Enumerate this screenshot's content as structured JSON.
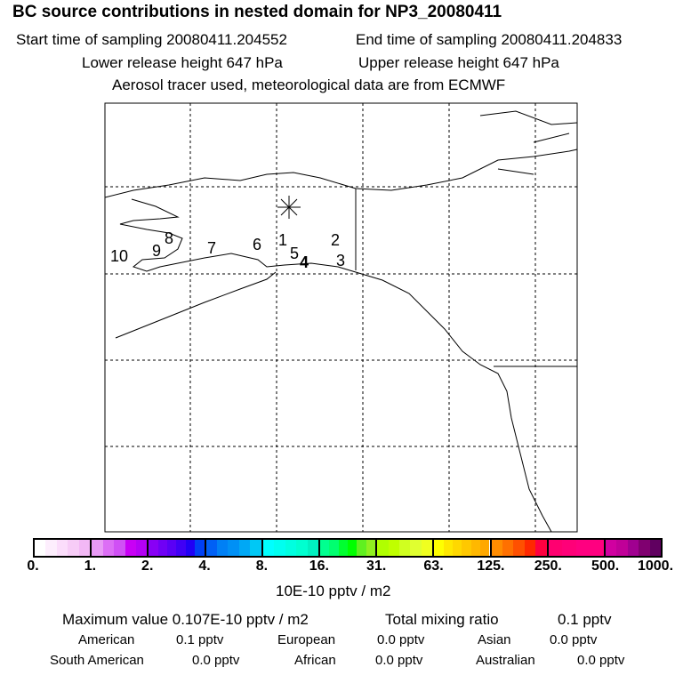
{
  "title": "BC  source contributions in nested domain for NP3_20080411",
  "start_label": "Start time of sampling 20080411.204552",
  "end_label": "End time of sampling 20080411.204833",
  "lower_label": "Lower release height  647 hPa",
  "upper_label": "Upper release height  647 hPa",
  "tracer_label": "Aerosol tracer used, meteorological data are from ECMWF",
  "source_labels": [
    "1",
    "2",
    "3",
    "4",
    "5",
    "6",
    "7",
    "8",
    "9",
    "10"
  ],
  "colorbar": {
    "ticks": [
      "0.",
      "1.",
      "2.",
      "4.",
      "8.",
      "16.",
      "31.",
      "63.",
      "125.",
      "250.",
      "500.",
      "1000."
    ],
    "unit": "10E-10 pptv / m2",
    "segments": [
      [
        "#ffffff",
        "#fdeefd",
        "#fbddfb",
        "#f7ccf7",
        "#f2b8f5"
      ],
      [
        "#e89af5",
        "#dc6ef5",
        "#d050f5",
        "#c800f5",
        "#b400f5"
      ],
      [
        "#8800f5",
        "#7000f5",
        "#5a00f5",
        "#4000f5",
        "#2000f5",
        "#0040f5"
      ],
      [
        "#0060f5",
        "#0080f5",
        "#0090f5",
        "#00a8f5",
        "#00c8f5"
      ],
      [
        "#00ffff",
        "#00fff0",
        "#00ffe0",
        "#00ffd0",
        "#00f0c0"
      ],
      [
        "#00ff90",
        "#00ff70",
        "#00ff30",
        "#00ff00",
        "#60f020",
        "#90f020"
      ],
      [
        "#b0ff00",
        "#c0ff00",
        "#d0ff20",
        "#e0ff30",
        "#f0ff20"
      ],
      [
        "#ffff00",
        "#ffe800",
        "#ffd800",
        "#ffc800",
        "#ffb800",
        "#ffa800"
      ],
      [
        "#ff8c00",
        "#ff7000",
        "#ff5000",
        "#ff2800",
        "#ff0040"
      ],
      [
        "#ff0070",
        "#ff0078",
        "#ff0080",
        "#ff0080"
      ],
      [
        "#d000a0",
        "#c00098",
        "#a00090",
        "#800070",
        "#600060"
      ]
    ]
  },
  "stats": {
    "max_label": "Maximum value  0.107E-10 pptv / m2",
    "total_label": "Total mixing ratio",
    "total_value": "0.1 pptv",
    "regions": [
      {
        "name": "American",
        "value": "0.1 pptv"
      },
      {
        "name": "European",
        "value": "0.0 pptv"
      },
      {
        "name": "Asian",
        "value": "0.0 pptv"
      },
      {
        "name": "South American",
        "value": "0.0 pptv"
      },
      {
        "name": "African",
        "value": "0.0 pptv"
      },
      {
        "name": "Australian",
        "value": "0.0 pptv"
      }
    ]
  }
}
